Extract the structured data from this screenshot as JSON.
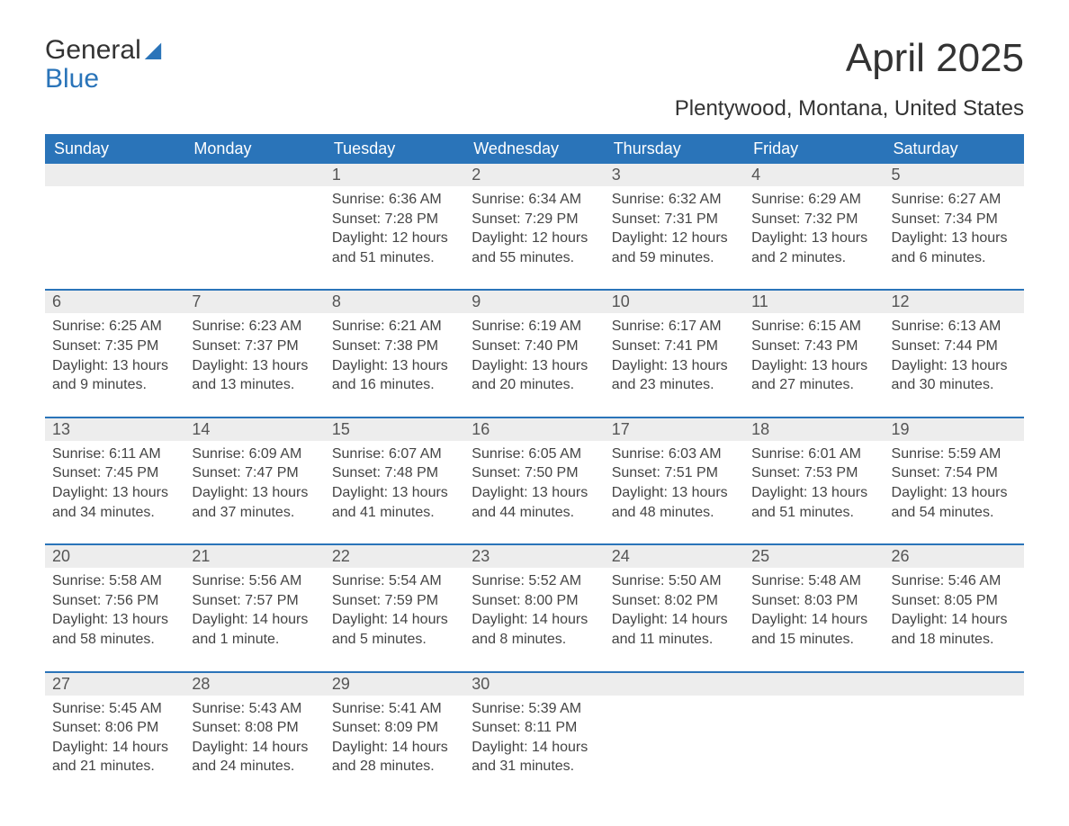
{
  "logo": {
    "line1": "General",
    "line2": "Blue"
  },
  "title": "April 2025",
  "location": "Plentywood, Montana, United States",
  "header_bg": "#2a74b9",
  "header_fg": "#ffffff",
  "daynum_bg": "#ededed",
  "text_color": "#444444",
  "day_names": [
    "Sunday",
    "Monday",
    "Tuesday",
    "Wednesday",
    "Thursday",
    "Friday",
    "Saturday"
  ],
  "weeks": [
    {
      "days": [
        {
          "blank": true
        },
        {
          "blank": true
        },
        {
          "num": "1",
          "sunrise": "Sunrise: 6:36 AM",
          "sunset": "Sunset: 7:28 PM",
          "daylight": "Daylight: 12 hours and 51 minutes."
        },
        {
          "num": "2",
          "sunrise": "Sunrise: 6:34 AM",
          "sunset": "Sunset: 7:29 PM",
          "daylight": "Daylight: 12 hours and 55 minutes."
        },
        {
          "num": "3",
          "sunrise": "Sunrise: 6:32 AM",
          "sunset": "Sunset: 7:31 PM",
          "daylight": "Daylight: 12 hours and 59 minutes."
        },
        {
          "num": "4",
          "sunrise": "Sunrise: 6:29 AM",
          "sunset": "Sunset: 7:32 PM",
          "daylight": "Daylight: 13 hours and 2 minutes."
        },
        {
          "num": "5",
          "sunrise": "Sunrise: 6:27 AM",
          "sunset": "Sunset: 7:34 PM",
          "daylight": "Daylight: 13 hours and 6 minutes."
        }
      ]
    },
    {
      "days": [
        {
          "num": "6",
          "sunrise": "Sunrise: 6:25 AM",
          "sunset": "Sunset: 7:35 PM",
          "daylight": "Daylight: 13 hours and 9 minutes."
        },
        {
          "num": "7",
          "sunrise": "Sunrise: 6:23 AM",
          "sunset": "Sunset: 7:37 PM",
          "daylight": "Daylight: 13 hours and 13 minutes."
        },
        {
          "num": "8",
          "sunrise": "Sunrise: 6:21 AM",
          "sunset": "Sunset: 7:38 PM",
          "daylight": "Daylight: 13 hours and 16 minutes."
        },
        {
          "num": "9",
          "sunrise": "Sunrise: 6:19 AM",
          "sunset": "Sunset: 7:40 PM",
          "daylight": "Daylight: 13 hours and 20 minutes."
        },
        {
          "num": "10",
          "sunrise": "Sunrise: 6:17 AM",
          "sunset": "Sunset: 7:41 PM",
          "daylight": "Daylight: 13 hours and 23 minutes."
        },
        {
          "num": "11",
          "sunrise": "Sunrise: 6:15 AM",
          "sunset": "Sunset: 7:43 PM",
          "daylight": "Daylight: 13 hours and 27 minutes."
        },
        {
          "num": "12",
          "sunrise": "Sunrise: 6:13 AM",
          "sunset": "Sunset: 7:44 PM",
          "daylight": "Daylight: 13 hours and 30 minutes."
        }
      ]
    },
    {
      "days": [
        {
          "num": "13",
          "sunrise": "Sunrise: 6:11 AM",
          "sunset": "Sunset: 7:45 PM",
          "daylight": "Daylight: 13 hours and 34 minutes."
        },
        {
          "num": "14",
          "sunrise": "Sunrise: 6:09 AM",
          "sunset": "Sunset: 7:47 PM",
          "daylight": "Daylight: 13 hours and 37 minutes."
        },
        {
          "num": "15",
          "sunrise": "Sunrise: 6:07 AM",
          "sunset": "Sunset: 7:48 PM",
          "daylight": "Daylight: 13 hours and 41 minutes."
        },
        {
          "num": "16",
          "sunrise": "Sunrise: 6:05 AM",
          "sunset": "Sunset: 7:50 PM",
          "daylight": "Daylight: 13 hours and 44 minutes."
        },
        {
          "num": "17",
          "sunrise": "Sunrise: 6:03 AM",
          "sunset": "Sunset: 7:51 PM",
          "daylight": "Daylight: 13 hours and 48 minutes."
        },
        {
          "num": "18",
          "sunrise": "Sunrise: 6:01 AM",
          "sunset": "Sunset: 7:53 PM",
          "daylight": "Daylight: 13 hours and 51 minutes."
        },
        {
          "num": "19",
          "sunrise": "Sunrise: 5:59 AM",
          "sunset": "Sunset: 7:54 PM",
          "daylight": "Daylight: 13 hours and 54 minutes."
        }
      ]
    },
    {
      "days": [
        {
          "num": "20",
          "sunrise": "Sunrise: 5:58 AM",
          "sunset": "Sunset: 7:56 PM",
          "daylight": "Daylight: 13 hours and 58 minutes."
        },
        {
          "num": "21",
          "sunrise": "Sunrise: 5:56 AM",
          "sunset": "Sunset: 7:57 PM",
          "daylight": "Daylight: 14 hours and 1 minute."
        },
        {
          "num": "22",
          "sunrise": "Sunrise: 5:54 AM",
          "sunset": "Sunset: 7:59 PM",
          "daylight": "Daylight: 14 hours and 5 minutes."
        },
        {
          "num": "23",
          "sunrise": "Sunrise: 5:52 AM",
          "sunset": "Sunset: 8:00 PM",
          "daylight": "Daylight: 14 hours and 8 minutes."
        },
        {
          "num": "24",
          "sunrise": "Sunrise: 5:50 AM",
          "sunset": "Sunset: 8:02 PM",
          "daylight": "Daylight: 14 hours and 11 minutes."
        },
        {
          "num": "25",
          "sunrise": "Sunrise: 5:48 AM",
          "sunset": "Sunset: 8:03 PM",
          "daylight": "Daylight: 14 hours and 15 minutes."
        },
        {
          "num": "26",
          "sunrise": "Sunrise: 5:46 AM",
          "sunset": "Sunset: 8:05 PM",
          "daylight": "Daylight: 14 hours and 18 minutes."
        }
      ]
    },
    {
      "days": [
        {
          "num": "27",
          "sunrise": "Sunrise: 5:45 AM",
          "sunset": "Sunset: 8:06 PM",
          "daylight": "Daylight: 14 hours and 21 minutes."
        },
        {
          "num": "28",
          "sunrise": "Sunrise: 5:43 AM",
          "sunset": "Sunset: 8:08 PM",
          "daylight": "Daylight: 14 hours and 24 minutes."
        },
        {
          "num": "29",
          "sunrise": "Sunrise: 5:41 AM",
          "sunset": "Sunset: 8:09 PM",
          "daylight": "Daylight: 14 hours and 28 minutes."
        },
        {
          "num": "30",
          "sunrise": "Sunrise: 5:39 AM",
          "sunset": "Sunset: 8:11 PM",
          "daylight": "Daylight: 14 hours and 31 minutes."
        },
        {
          "blank": true
        },
        {
          "blank": true
        },
        {
          "blank": true
        }
      ]
    }
  ]
}
